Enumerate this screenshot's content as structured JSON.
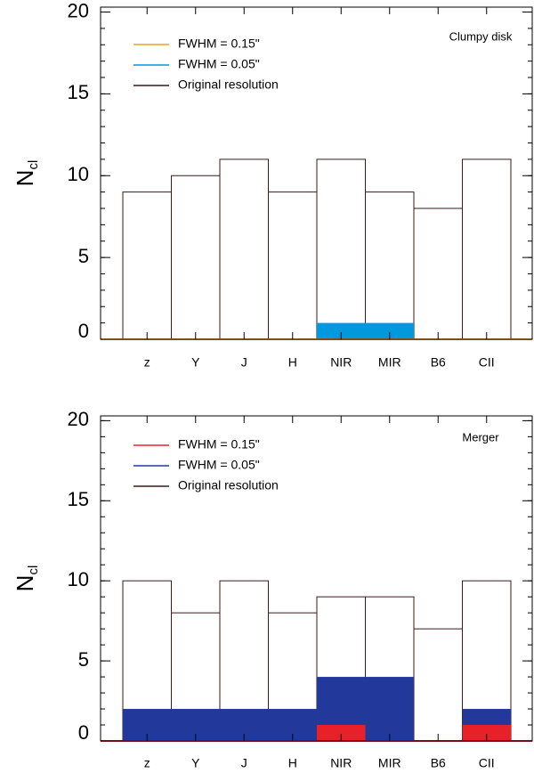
{
  "chart_data": [
    {
      "type": "bar",
      "annotation": "Clumpy disk",
      "ylabel": "N",
      "ylabel_sub": "cl",
      "categories": [
        "z",
        "Y",
        "J",
        "H",
        "NIR",
        "MIR",
        "B6",
        "CII"
      ],
      "series": [
        {
          "name": "FWHM = 0.15\"",
          "color": "#f0a030",
          "values": [
            0,
            0,
            0,
            0,
            0,
            0,
            0,
            0
          ]
        },
        {
          "name": "FWHM = 0.05\"",
          "color": "#0099dd",
          "values": [
            0,
            0,
            0,
            0,
            1,
            1,
            0,
            0
          ]
        },
        {
          "name": "Original resolution",
          "color": "#3a1a1a",
          "values": [
            9,
            10,
            11,
            9,
            11,
            9,
            8,
            11
          ]
        }
      ],
      "ylim": [
        0,
        20.3
      ],
      "yticks": [
        0,
        5,
        10,
        15,
        20
      ]
    },
    {
      "type": "bar",
      "annotation": "Merger",
      "ylabel": "N",
      "ylabel_sub": "cl",
      "categories": [
        "z",
        "Y",
        "J",
        "H",
        "NIR",
        "MIR",
        "B6",
        "CII"
      ],
      "series": [
        {
          "name": "FWHM = 0.15\"",
          "color": "#e8202a",
          "values": [
            0,
            0,
            0,
            0,
            1,
            0,
            0,
            1
          ]
        },
        {
          "name": "FWHM = 0.05\"",
          "color": "#22389a",
          "values": [
            2,
            2,
            2,
            2,
            4,
            4,
            0,
            2
          ]
        },
        {
          "name": "Original resolution",
          "color": "#3a1a1a",
          "values": [
            10,
            8,
            10,
            8,
            9,
            9,
            7,
            10
          ]
        }
      ],
      "ylim": [
        0,
        20.3
      ],
      "yticks": [
        0,
        5,
        10,
        15,
        20
      ]
    }
  ]
}
